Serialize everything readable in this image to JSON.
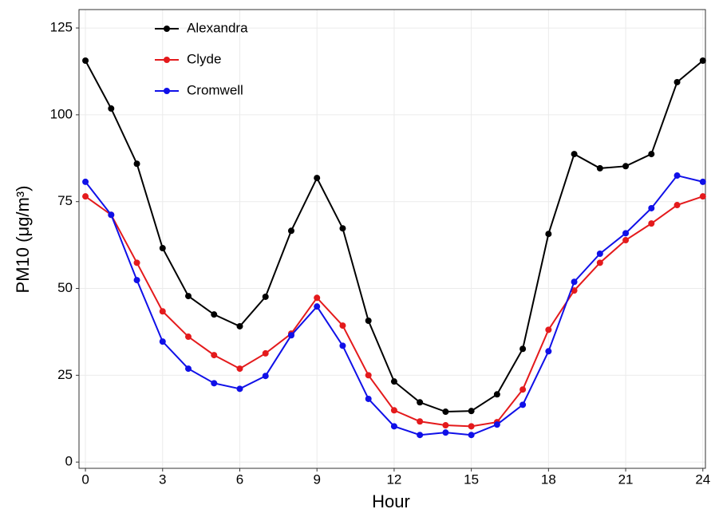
{
  "chart_data": {
    "type": "line",
    "x_label": "Hour",
    "y_label": "PM10 (μg/m³)",
    "x": [
      0,
      1,
      2,
      3,
      4,
      5,
      6,
      7,
      8,
      9,
      10,
      11,
      12,
      13,
      14,
      15,
      16,
      17,
      18,
      19,
      20,
      21,
      22,
      23,
      24
    ],
    "series": [
      {
        "name": "Alexandra",
        "color": "#000000",
        "values": [
          115.6,
          101.8,
          85.9,
          61.6,
          47.8,
          42.5,
          39.1,
          47.6,
          66.6,
          81.8,
          67.3,
          40.7,
          23.2,
          17.2,
          14.5,
          14.7,
          19.5,
          32.6,
          65.7,
          88.7,
          84.6,
          85.2,
          88.7,
          109.4,
          115.6
        ]
      },
      {
        "name": "Clyde",
        "color": "#e41a1c",
        "values": [
          76.5,
          71.2,
          57.4,
          43.4,
          36.1,
          30.8,
          26.9,
          31.3,
          37.0,
          47.3,
          39.3,
          25.0,
          14.9,
          11.7,
          10.6,
          10.3,
          11.5,
          20.9,
          38.1,
          49.4,
          57.4,
          63.9,
          68.7,
          74.0,
          76.5
        ]
      },
      {
        "name": "Cromwell",
        "color": "#1010e8",
        "values": [
          80.7,
          71.2,
          52.4,
          34.7,
          26.9,
          22.7,
          21.1,
          24.8,
          36.5,
          44.8,
          33.5,
          18.2,
          10.3,
          7.8,
          8.5,
          7.8,
          10.8,
          16.5,
          31.9,
          51.9,
          60.0,
          65.9,
          73.1,
          82.5,
          80.7
        ]
      }
    ],
    "xlim": [
      -0.25,
      24.1
    ],
    "ylim": [
      -1.8,
      130.3
    ],
    "xticks": [
      0,
      3,
      6,
      9,
      12,
      15,
      18,
      21,
      24
    ],
    "yticks": [
      0,
      25,
      50,
      75,
      100,
      125
    ],
    "grid": true,
    "legend_position": "top-left"
  }
}
